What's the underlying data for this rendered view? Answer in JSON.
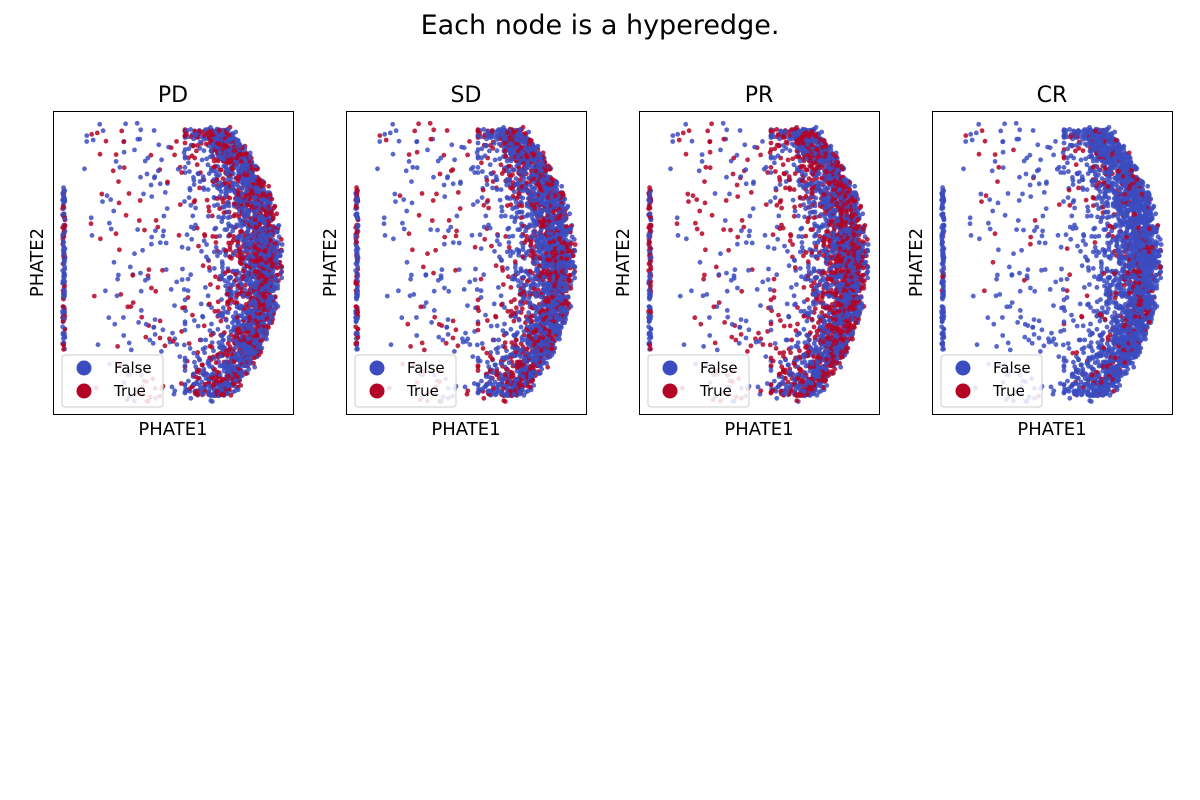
{
  "figure": {
    "suptitle": "Each node is a hyperedge."
  },
  "chart_data": [
    {
      "type": "scatter",
      "title": "PD",
      "xlabel": "PHATE1",
      "ylabel": "PHATE2",
      "xticks": "none",
      "yticks": "none",
      "grid": false,
      "legend": {
        "position": "lower-left",
        "entries": [
          "False",
          "True"
        ]
      },
      "colors": {
        "False": "#3b4cc0",
        "True": "#b40426"
      },
      "true_fraction": 0.38,
      "series": [
        {
          "name": "False",
          "points": "dense crescent-shaped cloud concentrated on the right; scattered points to the left; vertical strip of points at far left"
        },
        {
          "name": "True",
          "points": "interspersed throughout the cloud"
        }
      ]
    },
    {
      "type": "scatter",
      "title": "SD",
      "xlabel": "PHATE1",
      "ylabel": "PHATE2",
      "xticks": "none",
      "yticks": "none",
      "grid": false,
      "legend": {
        "position": "lower-left",
        "entries": [
          "False",
          "True"
        ]
      },
      "colors": {
        "False": "#3b4cc0",
        "True": "#b40426"
      },
      "true_fraction": 0.33,
      "series": [
        {
          "name": "False",
          "points": "dense crescent-shaped cloud concentrated on the right"
        },
        {
          "name": "True",
          "points": "interspersed throughout the cloud"
        }
      ]
    },
    {
      "type": "scatter",
      "title": "PR",
      "xlabel": "PHATE1",
      "ylabel": "PHATE2",
      "xticks": "none",
      "yticks": "none",
      "grid": false,
      "legend": {
        "position": "lower-left",
        "entries": [
          "False",
          "True"
        ]
      },
      "colors": {
        "False": "#3b4cc0",
        "True": "#b40426"
      },
      "true_fraction": 0.45,
      "series": [
        {
          "name": "False",
          "points": "dense crescent-shaped cloud concentrated on the right"
        },
        {
          "name": "True",
          "points": "interspersed throughout the cloud"
        }
      ]
    },
    {
      "type": "scatter",
      "title": "CR",
      "xlabel": "PHATE1",
      "ylabel": "PHATE2",
      "xticks": "none",
      "yticks": "none",
      "grid": false,
      "legend": {
        "position": "lower-left",
        "entries": [
          "False",
          "True"
        ]
      },
      "colors": {
        "False": "#3b4cc0",
        "True": "#b40426"
      },
      "true_fraction": 0.12,
      "series": [
        {
          "name": "False",
          "points": "dense crescent-shaped cloud concentrated on the right"
        },
        {
          "name": "True",
          "points": "sparse, interspersed"
        }
      ]
    }
  ]
}
